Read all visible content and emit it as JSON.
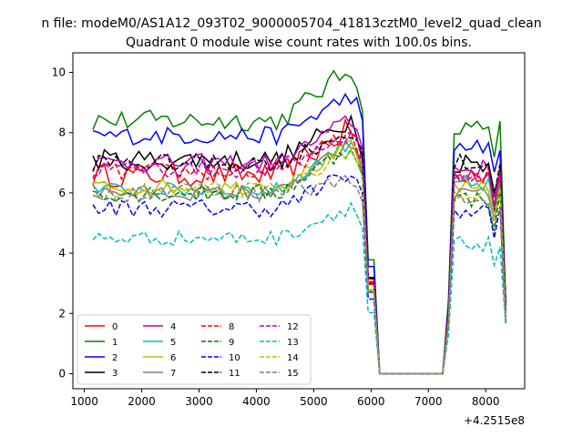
{
  "chart_data": {
    "type": "line",
    "suptitle": "n file: modeM0/AS1A12_093T02_9000005704_41813cztM0_level2_quad_clean",
    "title": "Quadrant 0 module wise count rates with 100.0s bins.",
    "xlabel": "",
    "ylabel": "",
    "x_offset_label": "+4.2515e8",
    "xlim": [
      800,
      8680
    ],
    "ylim": [
      -0.5,
      10.65
    ],
    "xticks": [
      1000,
      2000,
      3000,
      4000,
      5000,
      6000,
      7000,
      8000
    ],
    "xtick_labels": [
      "1000",
      "2000",
      "3000",
      "4000",
      "5000",
      "6000",
      "7000",
      "8000"
    ],
    "yticks": [
      0,
      2,
      4,
      6,
      8,
      10
    ],
    "ytick_labels": [
      "0",
      "2",
      "4",
      "6",
      "8",
      "10"
    ],
    "grid": false,
    "legend_position": "lower-left",
    "legend_columns": 4,
    "shape": {
      "x_start": 1150,
      "step": 100,
      "plateau_ramp_rise_start": 4400,
      "plateau_ramp_rise_end": 5700,
      "drop_start": 5950,
      "zero_start": 6150,
      "zero_end": 7250,
      "resume_start": 7450,
      "dip_x": 8150,
      "end_x": 8350
    },
    "series": [
      {
        "name": "0",
        "color": "#ff0000",
        "dash": "solid",
        "base": 6.6,
        "peak": 8.2,
        "late": 6.7,
        "end": 2.2,
        "noise": 0.4
      },
      {
        "name": "1",
        "color": "#008000",
        "dash": "solid",
        "base": 8.4,
        "peak": 10.2,
        "late": 8.1,
        "end": 2.3,
        "noise": 0.35
      },
      {
        "name": "2",
        "color": "#0000ff",
        "dash": "solid",
        "base": 7.9,
        "peak": 9.3,
        "late": 7.6,
        "end": 2.2,
        "noise": 0.3
      },
      {
        "name": "3",
        "color": "#000000",
        "dash": "solid",
        "base": 7.1,
        "peak": 8.5,
        "late": 7.0,
        "end": 2.4,
        "noise": 0.35
      },
      {
        "name": "4",
        "color": "#bf00bf",
        "dash": "solid",
        "base": 7.0,
        "peak": 8.5,
        "late": 6.8,
        "end": 2.1,
        "noise": 0.3
      },
      {
        "name": "5",
        "color": "#00bfbf",
        "dash": "solid",
        "base": 6.1,
        "peak": 7.8,
        "late": 6.3,
        "end": 1.9,
        "noise": 0.25
      },
      {
        "name": "6",
        "color": "#bfbf00",
        "dash": "solid",
        "base": 6.2,
        "peak": 7.6,
        "late": 6.2,
        "end": 1.9,
        "noise": 0.25
      },
      {
        "name": "7",
        "color": "#808080",
        "dash": "solid",
        "base": 6.0,
        "peak": 7.7,
        "late": 6.0,
        "end": 1.8,
        "noise": 0.25
      },
      {
        "name": "8",
        "color": "#ff0000",
        "dash": "dashed",
        "base": 6.7,
        "peak": 8.0,
        "late": 6.6,
        "end": 2.0,
        "noise": 0.3
      },
      {
        "name": "9",
        "color": "#008000",
        "dash": "dashed",
        "base": 6.0,
        "peak": 7.6,
        "late": 5.8,
        "end": 1.9,
        "noise": 0.3
      },
      {
        "name": "10",
        "color": "#0000ff",
        "dash": "dashed",
        "base": 5.5,
        "peak": 6.7,
        "late": 5.4,
        "end": 1.7,
        "noise": 0.3
      },
      {
        "name": "11",
        "color": "#000000",
        "dash": "dashed",
        "base": 7.0,
        "peak": 8.1,
        "late": 7.0,
        "end": 2.2,
        "noise": 0.3
      },
      {
        "name": "12",
        "color": "#bf00bf",
        "dash": "dashed",
        "base": 6.8,
        "peak": 8.0,
        "late": 6.6,
        "end": 2.0,
        "noise": 0.3
      },
      {
        "name": "13",
        "color": "#00bfbf",
        "dash": "dashed",
        "base": 4.5,
        "peak": 5.6,
        "late": 4.3,
        "end": 1.6,
        "noise": 0.25
      },
      {
        "name": "14",
        "color": "#bfbf00",
        "dash": "dashed",
        "base": 6.1,
        "peak": 7.5,
        "late": 6.0,
        "end": 1.9,
        "noise": 0.25
      },
      {
        "name": "15",
        "color": "#808080",
        "dash": "dashed",
        "base": 6.0,
        "peak": 6.4,
        "late": 5.6,
        "end": 1.7,
        "noise": 0.3
      }
    ]
  }
}
